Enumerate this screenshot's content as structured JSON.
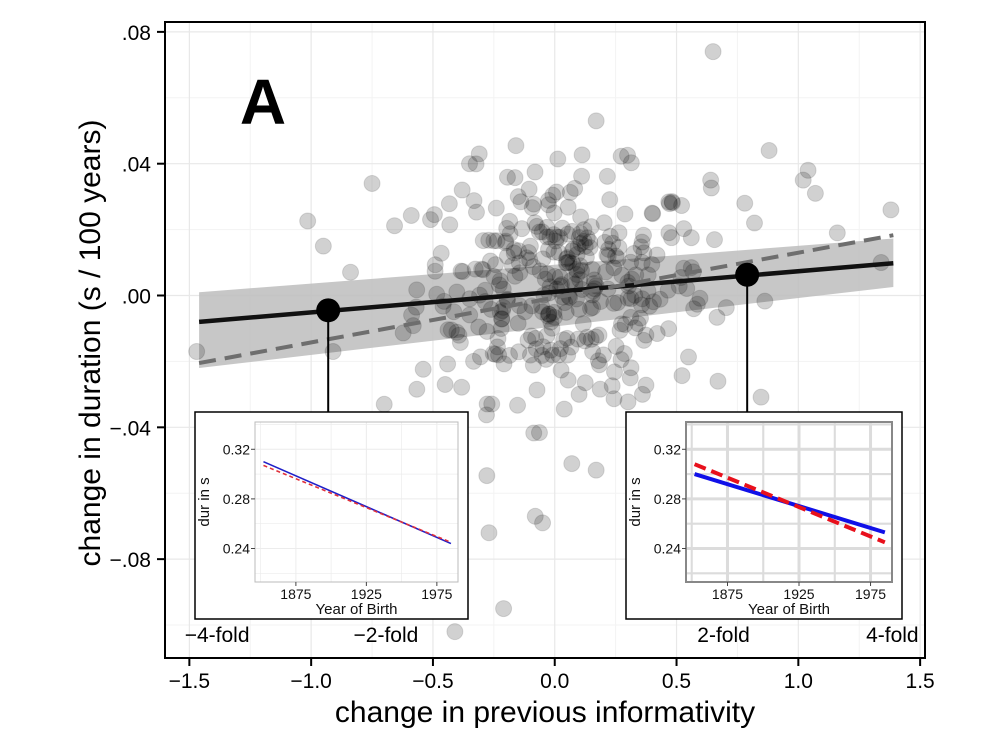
{
  "chart_data": {
    "type": "scatter",
    "panel_label": "A",
    "xlabel": "change in previous informativity",
    "ylabel": "change in duration (s / 100 years)",
    "xlim": [
      -1.6,
      1.52
    ],
    "ylim": [
      -0.11,
      0.083
    ],
    "x_ticks": [
      -1.5,
      -1.0,
      -0.5,
      0.0,
      0.5,
      1.0,
      1.5
    ],
    "x_tick_labels": [
      "−1.5",
      "−1.0",
      "−0.5",
      "0.0",
      "0.5",
      "1.0",
      "1.5"
    ],
    "y_ticks": [
      0.08,
      0.04,
      0.0,
      -0.04,
      -0.08
    ],
    "y_tick_labels": [
      ".08",
      ".04",
      ".00",
      "−.04",
      "−.08"
    ],
    "fold_labels": [
      {
        "x": -1.386,
        "label": "−4-fold"
      },
      {
        "x": -0.693,
        "label": "−2-fold"
      },
      {
        "x": 0.693,
        "label": "2-fold"
      },
      {
        "x": 1.386,
        "label": "4-fold"
      }
    ],
    "grid": true,
    "points_color": "#000000",
    "points_alpha": 0.18,
    "points_sample": [
      [
        0.65,
        0.074
      ],
      [
        0.17,
        0.053
      ],
      [
        0.88,
        0.044
      ],
      [
        -0.31,
        0.043
      ],
      [
        -0.35,
        0.04
      ],
      [
        1.04,
        0.038
      ],
      [
        0.64,
        0.035
      ],
      [
        1.02,
        0.035
      ],
      [
        -0.75,
        0.034
      ],
      [
        -0.38,
        0.032
      ],
      [
        1.07,
        0.031
      ],
      [
        -0.95,
        0.015
      ],
      [
        0.78,
        0.028
      ],
      [
        0.82,
        0.022
      ],
      [
        1.38,
        0.026
      ],
      [
        1.16,
        0.019
      ],
      [
        1.34,
        0.01
      ],
      [
        -0.91,
        -0.017
      ],
      [
        -1.47,
        -0.017
      ],
      [
        -0.7,
        -0.033
      ],
      [
        -0.72,
        -0.039
      ],
      [
        -0.45,
        -0.027
      ],
      [
        -0.27,
        -0.072
      ],
      [
        -0.08,
        -0.067
      ],
      [
        -0.05,
        -0.069
      ],
      [
        0.07,
        -0.051
      ],
      [
        0.17,
        -0.053
      ],
      [
        -0.21,
        -0.095
      ],
      [
        -0.41,
        -0.102
      ],
      [
        0.67,
        -0.026
      ],
      [
        0.82,
        -0.041
      ],
      [
        0.31,
        -0.025
      ],
      [
        0.36,
        -0.03
      ],
      [
        -0.22,
        -0.01
      ],
      [
        0.2,
        -0.018
      ],
      [
        0.05,
        0.01
      ],
      [
        0.12,
        0.02
      ],
      [
        -0.1,
        0.015
      ],
      [
        0.25,
        0.012
      ],
      [
        -0.05,
        -0.005
      ],
      [
        0.3,
        0.004
      ],
      [
        -0.15,
        0.03
      ],
      [
        0.4,
        0.025
      ],
      [
        0.1,
        -0.03
      ],
      [
        -0.3,
        0.008
      ]
    ],
    "series": [
      {
        "name": "fit",
        "style": "solid",
        "color": "#111111",
        "x": [
          -1.46,
          1.39
        ],
        "y": [
          -0.008,
          0.0098
        ]
      },
      {
        "name": "reference",
        "style": "dashed",
        "color": "#6e6e6e",
        "x": [
          -1.46,
          1.39
        ],
        "y": [
          -0.0205,
          0.0183
        ]
      }
    ],
    "confidence_band": {
      "color": "#bdbdbd",
      "x": [
        -1.46,
        1.39
      ],
      "lower": [
        -0.022,
        0.0026
      ],
      "upper": [
        0.001,
        0.0173
      ]
    },
    "highlight_points": [
      {
        "x": -0.93,
        "y": -0.0045
      },
      {
        "x": 0.79,
        "y": 0.0063
      }
    ],
    "insets": [
      {
        "anchor_x": -0.93,
        "xlabel": "Year of Birth",
        "ylabel": "dur in s",
        "x_ticks": [
          1875,
          1925,
          1975
        ],
        "y_ticks": [
          0.24,
          0.28,
          0.32
        ],
        "y_tick_labels": [
          "0.24",
          "0.28",
          "0.32"
        ],
        "xlim": [
          1846,
          1990
        ],
        "ylim": [
          0.213,
          0.342
        ],
        "series": [
          {
            "name": "blue",
            "style": "solid",
            "color": "#1f1fc8",
            "x": [
              1852,
              1985
            ],
            "y": [
              0.31,
              0.244
            ]
          },
          {
            "name": "red",
            "style": "dashed",
            "color": "#e0303a",
            "x": [
              1852,
              1985
            ],
            "y": [
              0.307,
              0.245
            ]
          }
        ]
      },
      {
        "anchor_x": 0.79,
        "xlabel": "Year of Birth",
        "ylabel": "dur in s",
        "x_ticks": [
          1875,
          1925,
          1975
        ],
        "y_ticks": [
          0.24,
          0.28,
          0.32
        ],
        "y_tick_labels": [
          "0.24",
          "0.28",
          "0.32"
        ],
        "xlim": [
          1846,
          1990
        ],
        "ylim": [
          0.213,
          0.342
        ],
        "series": [
          {
            "name": "blue",
            "style": "solid",
            "color": "#1010e8",
            "x": [
              1852,
              1985
            ],
            "y": [
              0.3,
              0.253
            ]
          },
          {
            "name": "red",
            "style": "dashed",
            "color": "#e8101c",
            "x": [
              1852,
              1985
            ],
            "y": [
              0.308,
              0.245
            ]
          }
        ]
      }
    ]
  }
}
